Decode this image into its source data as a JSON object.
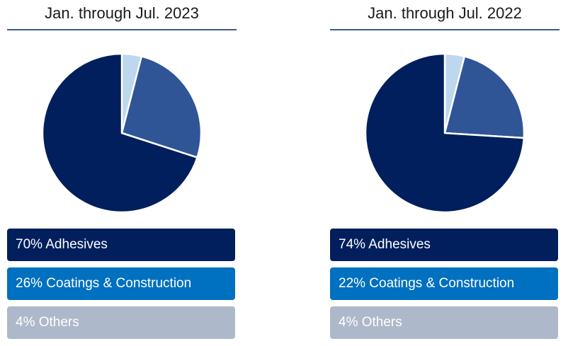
{
  "chart_data": [
    {
      "type": "pie",
      "title": "Jan. through Jul. 2023",
      "categories": [
        "Adhesives",
        "Coatings & Construction",
        "Others"
      ],
      "values": [
        70,
        26,
        4
      ],
      "slice_colors": [
        "#001f5c",
        "#2f5597",
        "#bdd7ee"
      ],
      "legend": [
        {
          "label": "70% Adhesives",
          "color": "#001f5c"
        },
        {
          "label": "26% Coatings & Construction",
          "color": "#0070c0"
        },
        {
          "label": "4% Others",
          "color": "#adb9ca"
        }
      ]
    },
    {
      "type": "pie",
      "title": "Jan. through Jul. 2022",
      "categories": [
        "Adhesives",
        "Coatings & Construction",
        "Others"
      ],
      "values": [
        74,
        22,
        4
      ],
      "slice_colors": [
        "#001f5c",
        "#2f5597",
        "#bdd7ee"
      ],
      "legend": [
        {
          "label": "74% Adhesives",
          "color": "#001f5c"
        },
        {
          "label": "22% Coatings & Construction",
          "color": "#0070c0"
        },
        {
          "label": "4% Others",
          "color": "#adb9ca"
        }
      ]
    }
  ]
}
